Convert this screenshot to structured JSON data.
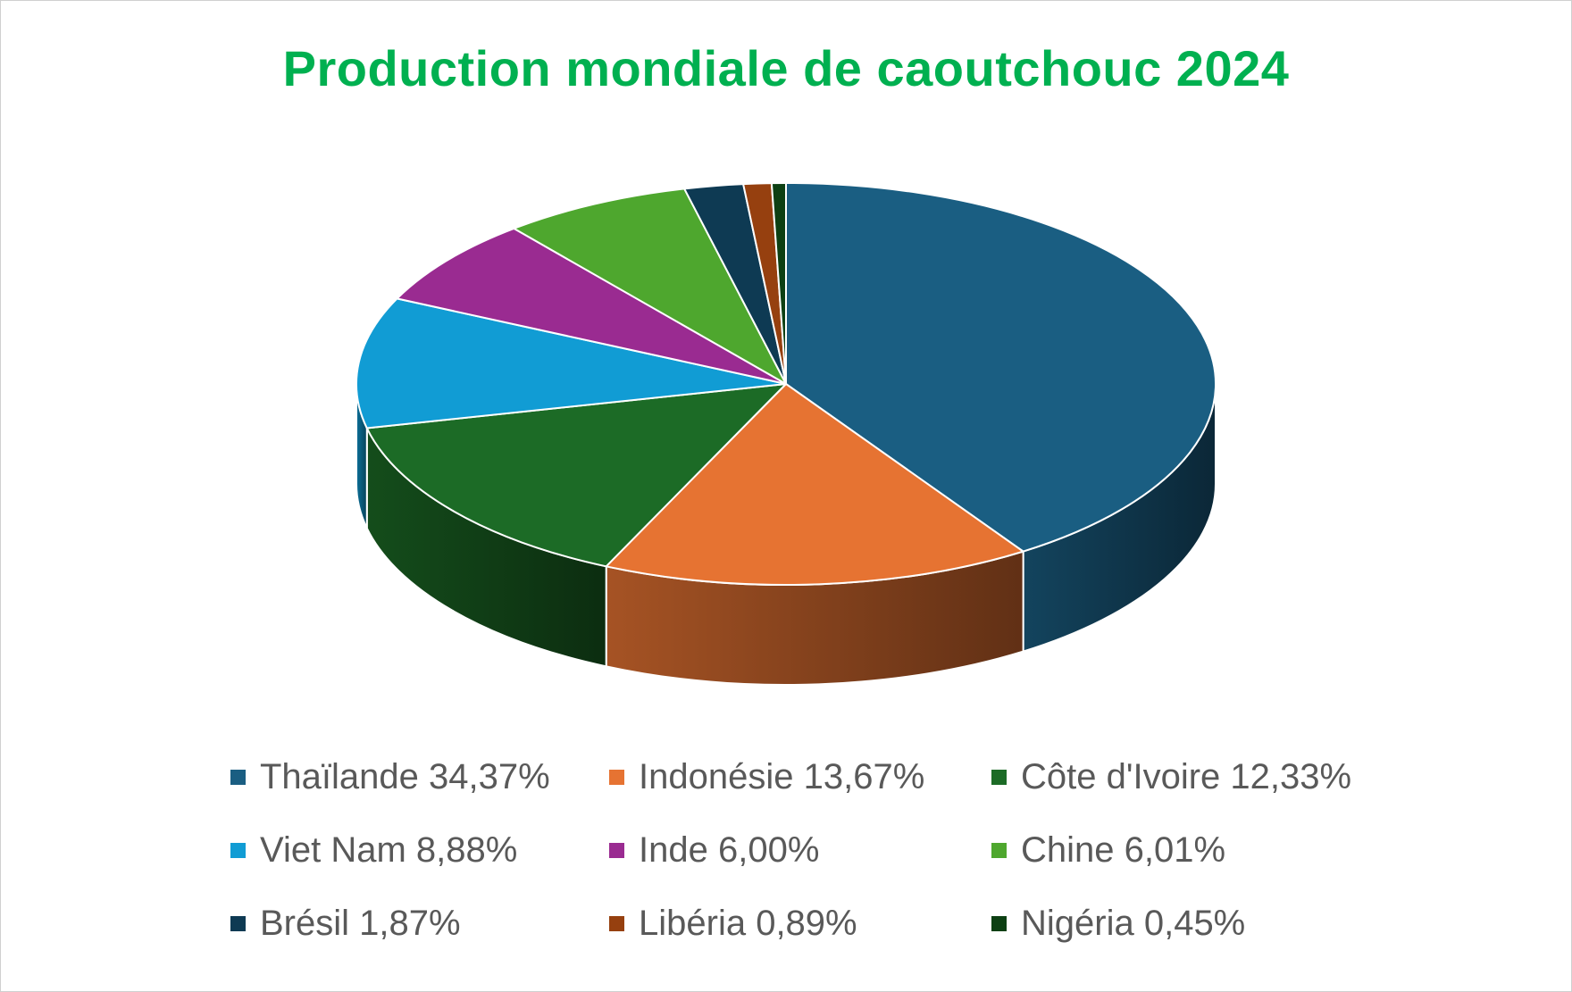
{
  "chart_data": {
    "type": "pie",
    "title": "Production mondiale de caoutchouc 2024",
    "legend_position": "bottom",
    "unit": "%",
    "slices": [
      {
        "label": "Thaïlande 34,37%",
        "value": 34.37,
        "color": "#1a5e82"
      },
      {
        "label": "Indonésie 13,67%",
        "value": 13.67,
        "color": "#e67332"
      },
      {
        "label": "Côte d'Ivoire 12,33%",
        "value": 12.33,
        "color": "#1c6b26"
      },
      {
        "label": "Viet Nam 8,88%",
        "value": 8.88,
        "color": "#119cd4"
      },
      {
        "label": "Inde 6,00%",
        "value": 6.0,
        "color": "#9a2b91"
      },
      {
        "label": "Chine 6,01%",
        "value": 6.01,
        "color": "#4ea72e"
      },
      {
        "label": "Brésil 1,87%",
        "value": 1.87,
        "color": "#0e3a53"
      },
      {
        "label": "Libéria 0,89%",
        "value": 0.89,
        "color": "#96400f"
      },
      {
        "label": "Nigéria 0,45%",
        "value": 0.45,
        "color": "#0d4013"
      }
    ],
    "wedge_order": [
      "Thaïlande 34,37%",
      "Indonésie 13,67%",
      "Côte d'Ivoire 12,33%",
      "Viet Nam 8,88%",
      "Inde 6,00%",
      "Chine 6,01%",
      "Brésil 1,87%",
      "Libéria 0,89%",
      "Nigéria 0,45%"
    ]
  }
}
